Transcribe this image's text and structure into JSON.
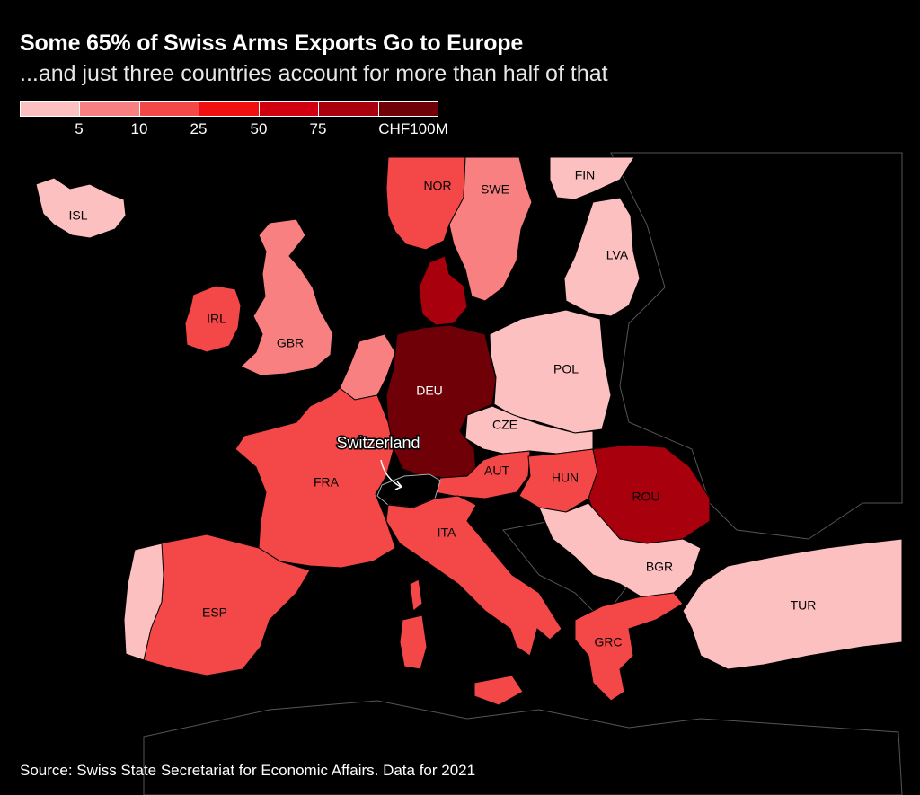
{
  "title": "Some 65% of Swiss Arms Exports Go to Europe",
  "subtitle": "...and just three countries account for more than half of that",
  "legend": {
    "colors": [
      "#fcc0c0",
      "#f98080",
      "#f44848",
      "#f01010",
      "#d00010",
      "#a8000c",
      "#700008"
    ],
    "labels": [
      "5",
      "10",
      "25",
      "50",
      "75",
      "CHF100M"
    ]
  },
  "countries": {
    "isl": "ISL",
    "nor": "NOR",
    "swe": "SWE",
    "fin": "FIN",
    "lva": "LVA",
    "irl": "IRL",
    "gbr": "GBR",
    "deu": "DEU",
    "pol": "POL",
    "cze": "CZE",
    "fra": "FRA",
    "aut": "AUT",
    "hun": "HUN",
    "rou": "ROU",
    "ita": "ITA",
    "bgr": "BGR",
    "esp": "ESP",
    "tur": "TUR",
    "grc": "GRC"
  },
  "callout": "Switzerland",
  "source": "Source: Swiss State Secretariat for Economic Affairs. Data for 2021"
}
